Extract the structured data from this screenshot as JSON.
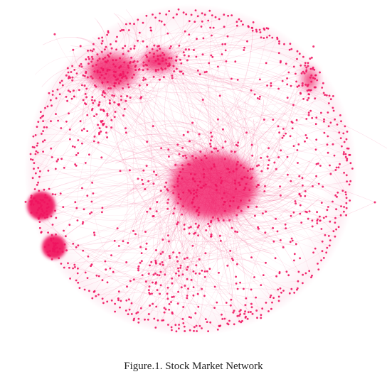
{
  "figure": {
    "caption": "Figure.1. Stock Market Network"
  },
  "colors": {
    "node": "#f0135f",
    "edge": "#f25a8c",
    "background": "#ffffff"
  }
}
